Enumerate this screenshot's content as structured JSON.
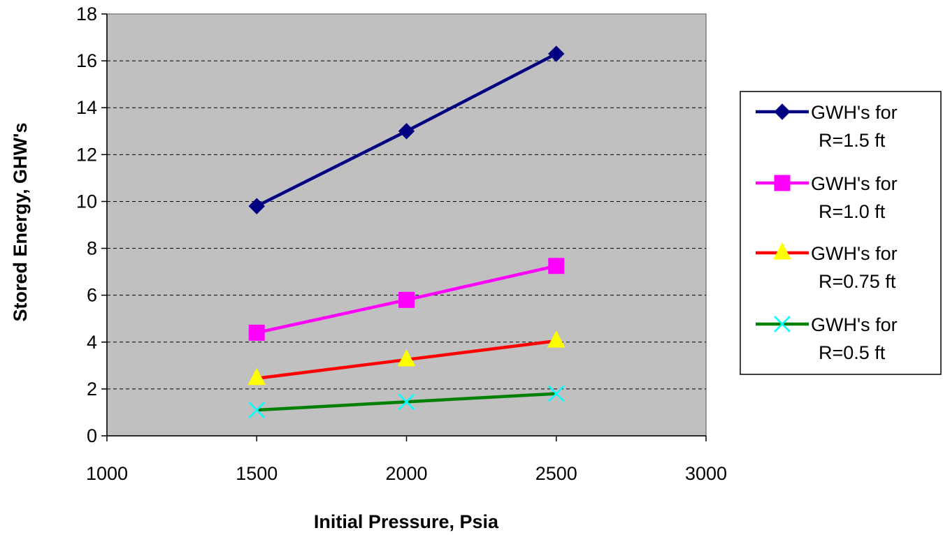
{
  "chart_data": {
    "type": "line",
    "title": "",
    "xlabel": "Initial Pressure, Psia",
    "ylabel": "Stored Energy, GHW's",
    "xlim": [
      1000,
      3000
    ],
    "ylim": [
      0,
      18
    ],
    "xticks": [
      1000,
      1500,
      2000,
      2500,
      3000
    ],
    "yticks": [
      0,
      2,
      4,
      6,
      8,
      10,
      12,
      14,
      16,
      18
    ],
    "grid": "horizontal-dashed",
    "plot_background": "#c0c0c0",
    "legend_position": "right",
    "series": [
      {
        "name_line1": "GWH's for",
        "name_line2": "R=1.5 ft",
        "x": [
          1500,
          2000,
          2500
        ],
        "y": [
          9.8,
          13.0,
          16.3
        ],
        "line_color": "#000080",
        "marker": "diamond",
        "marker_color": "#000080"
      },
      {
        "name_line1": "GWH's for",
        "name_line2": "R=1.0 ft",
        "x": [
          1500,
          2000,
          2500
        ],
        "y": [
          4.4,
          5.8,
          7.25
        ],
        "line_color": "#ff00ff",
        "marker": "square",
        "marker_color": "#ff00ff"
      },
      {
        "name_line1": "GWH's for",
        "name_line2": "R=0.75 ft",
        "x": [
          1500,
          2000,
          2500
        ],
        "y": [
          2.45,
          3.25,
          4.05
        ],
        "line_color": "#ff0000",
        "marker": "triangle",
        "marker_color": "#ffff00"
      },
      {
        "name_line1": "GWH's for",
        "name_line2": "R=0.5 ft",
        "x": [
          1500,
          2000,
          2500
        ],
        "y": [
          1.1,
          1.45,
          1.8
        ],
        "line_color": "#008000",
        "marker": "x",
        "marker_color": "#00ffff"
      }
    ]
  }
}
